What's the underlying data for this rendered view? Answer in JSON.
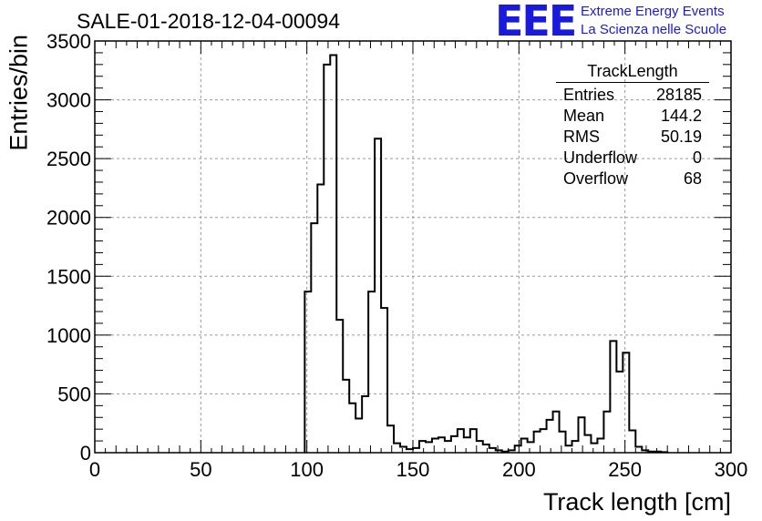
{
  "chart_data": {
    "type": "bar",
    "title": "SALE-01-2018-12-04-00094",
    "xlabel": "Track length [cm]",
    "ylabel": "Entries/bin",
    "xlim": [
      0,
      300
    ],
    "ylim": [
      0,
      3500
    ],
    "bin_width": 3,
    "grid": true,
    "x_ticks": [
      0,
      50,
      100,
      150,
      200,
      250,
      300
    ],
    "y_ticks": [
      0,
      500,
      1000,
      1500,
      2000,
      2500,
      3000,
      3500
    ],
    "bin_edges_start": [
      99,
      102,
      105,
      108,
      111,
      114,
      117,
      120,
      123,
      126,
      129,
      132,
      135,
      138,
      141,
      144,
      147,
      150,
      153,
      156,
      159,
      162,
      165,
      168,
      171,
      174,
      177,
      180,
      183,
      186,
      189,
      192,
      195,
      198,
      201,
      204,
      207,
      210,
      213,
      216,
      219,
      222,
      225,
      228,
      231,
      234,
      237,
      240,
      243,
      246,
      249,
      252,
      255,
      258,
      261,
      264,
      267
    ],
    "values": [
      1370,
      1950,
      2280,
      3300,
      3380,
      1130,
      620,
      420,
      290,
      480,
      1370,
      2670,
      1230,
      230,
      80,
      50,
      30,
      40,
      100,
      90,
      120,
      130,
      100,
      140,
      200,
      130,
      200,
      100,
      70,
      40,
      20,
      10,
      20,
      60,
      120,
      90,
      180,
      200,
      280,
      350,
      180,
      60,
      100,
      300,
      150,
      80,
      120,
      350,
      950,
      690,
      850,
      190,
      50,
      20,
      10,
      10,
      5
    ]
  },
  "stats": {
    "name": "TrackLength",
    "entries_label": "Entries",
    "entries": "28185",
    "mean_label": "Mean",
    "mean": "144.2",
    "rms_label": "RMS",
    "rms": "50.19",
    "underflow_label": "Underflow",
    "underflow": "0",
    "overflow_label": "Overflow",
    "overflow": "68"
  },
  "logo": {
    "text": "EEE",
    "line1": "Extreme Energy Events",
    "line2": "La Scienza nelle Scuole",
    "color": "#1a1adc"
  }
}
